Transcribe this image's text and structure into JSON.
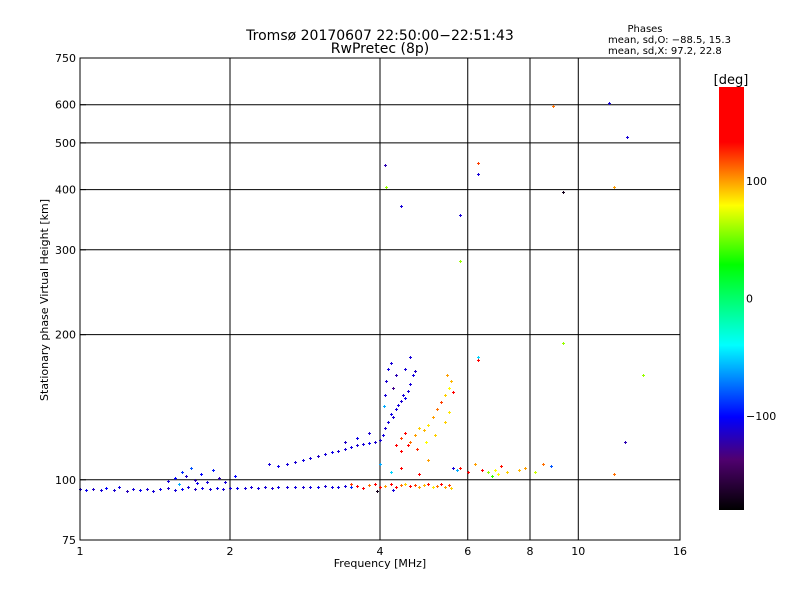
{
  "chart_data": {
    "type": "scatter",
    "title": "Tromsø 20170607 22:50:00−22:51:43",
    "subtitle": "RwPretec (8p)",
    "xlabel": "Frequency [MHz]",
    "ylabel": "Stationary phase Virtual Height [km]",
    "xscale": "log",
    "yscale": "log",
    "xlim": [
      1,
      16
    ],
    "ylim": [
      75,
      750
    ],
    "xticks": [
      1,
      2,
      4,
      6,
      8,
      10,
      16
    ],
    "xtick_labels": [
      "1",
      "2",
      "4",
      "6",
      "8",
      "10",
      "16"
    ],
    "xgrid": [
      2,
      4,
      6,
      8,
      10
    ],
    "yticks": [
      75,
      100,
      200,
      300,
      400,
      500,
      600,
      750
    ],
    "ytick_labels": [
      "75",
      "100",
      "200",
      "300",
      "400",
      "500",
      "600",
      "750"
    ],
    "ygrid": [
      100,
      200,
      300,
      400,
      500,
      600
    ],
    "grid": true,
    "colorbar": {
      "label": "[deg]",
      "range": [
        -180,
        180
      ],
      "ticks": [
        100,
        0,
        -100
      ],
      "tick_labels": [
        "100",
        "0",
        "−100"
      ]
    },
    "stats": {
      "heading": "Phases",
      "o_line": "mean, sd,O: −88.5, 15.3",
      "x_line": "mean, sd,X:  97.2, 22.8"
    },
    "point_fields": [
      "frequency_mhz",
      "height_km",
      "phase_deg"
    ],
    "points": [
      [
        1.0,
        95.5,
        -110
      ],
      [
        1.03,
        95.3,
        -105
      ],
      [
        1.06,
        95.8,
        -115
      ],
      [
        1.1,
        95.2,
        -110
      ],
      [
        1.13,
        96.0,
        -100
      ],
      [
        1.17,
        95.4,
        -112
      ],
      [
        1.2,
        96.5,
        -108
      ],
      [
        1.24,
        95.0,
        -118
      ],
      [
        1.28,
        95.6,
        -110
      ],
      [
        1.32,
        95.2,
        -104
      ],
      [
        1.36,
        95.8,
        -112
      ],
      [
        1.4,
        94.8,
        -110
      ],
      [
        1.45,
        95.5,
        -106
      ],
      [
        1.5,
        96.2,
        -114
      ],
      [
        1.55,
        95.4,
        -110
      ],
      [
        1.6,
        95.9,
        -102
      ],
      [
        1.65,
        96.4,
        -110
      ],
      [
        1.7,
        95.6,
        -115
      ],
      [
        1.76,
        96.0,
        -108
      ],
      [
        1.82,
        95.8,
        -112
      ],
      [
        1.88,
        96.3,
        -106
      ],
      [
        1.94,
        95.7,
        -110
      ],
      [
        2.0,
        96.0,
        -112
      ],
      [
        2.07,
        96.3,
        -104
      ],
      [
        2.14,
        96.0,
        -110
      ],
      [
        2.2,
        96.5,
        -112
      ],
      [
        2.28,
        96.2,
        -108
      ],
      [
        2.35,
        96.6,
        -110
      ],
      [
        2.43,
        96.3,
        -114
      ],
      [
        2.5,
        96.5,
        -106
      ],
      [
        2.6,
        96.4,
        -110
      ],
      [
        2.7,
        96.8,
        -108
      ],
      [
        2.8,
        96.5,
        -112
      ],
      [
        2.9,
        96.7,
        -110
      ],
      [
        3.0,
        96.6,
        -104
      ],
      [
        3.1,
        96.9,
        -112
      ],
      [
        3.2,
        96.6,
        -110
      ],
      [
        3.3,
        96.8,
        -106
      ],
      [
        3.4,
        97.0,
        -110
      ],
      [
        3.5,
        96.7,
        -90
      ],
      [
        1.5,
        99.5,
        -110
      ],
      [
        1.55,
        101,
        -100
      ],
      [
        1.6,
        104,
        -90
      ],
      [
        1.63,
        102,
        -115
      ],
      [
        1.67,
        106,
        -80
      ],
      [
        1.7,
        100,
        -120
      ],
      [
        1.75,
        103,
        -100
      ],
      [
        1.8,
        99,
        -110
      ],
      [
        1.85,
        105,
        -95
      ],
      [
        1.9,
        101,
        -120
      ],
      [
        1.95,
        99,
        -110
      ],
      [
        2.05,
        102,
        -100
      ],
      [
        1.58,
        98,
        -60
      ],
      [
        1.72,
        98.5,
        -105
      ],
      [
        2.4,
        108,
        -110
      ],
      [
        2.5,
        107,
        -105
      ],
      [
        2.6,
        108,
        -110
      ],
      [
        2.7,
        109,
        -112
      ],
      [
        2.8,
        110,
        -108
      ],
      [
        2.9,
        111,
        -110
      ],
      [
        3.0,
        112,
        -115
      ],
      [
        3.1,
        113,
        -110
      ],
      [
        3.2,
        114,
        -106
      ],
      [
        3.3,
        115,
        -112
      ],
      [
        3.4,
        116,
        -110
      ],
      [
        3.5,
        117,
        -108
      ],
      [
        3.6,
        118,
        -112
      ],
      [
        3.7,
        118.5,
        -110
      ],
      [
        3.8,
        119,
        -104
      ],
      [
        3.9,
        120,
        -112
      ],
      [
        4.0,
        121,
        -110
      ],
      [
        4.05,
        124,
        -108
      ],
      [
        4.1,
        128,
        -112
      ],
      [
        4.15,
        132,
        -110
      ],
      [
        4.2,
        137,
        -106
      ],
      [
        4.25,
        135,
        -112
      ],
      [
        4.3,
        140,
        -110
      ],
      [
        4.35,
        143,
        -108
      ],
      [
        4.4,
        146,
        -112
      ],
      [
        4.45,
        150,
        -110
      ],
      [
        4.5,
        148,
        -104
      ],
      [
        4.55,
        153,
        -112
      ],
      [
        4.6,
        158,
        -110
      ],
      [
        4.65,
        165,
        -108
      ],
      [
        4.1,
        150,
        -110
      ],
      [
        4.12,
        160,
        -112
      ],
      [
        4.15,
        170,
        -108
      ],
      [
        4.2,
        175,
        -110
      ],
      [
        4.08,
        142,
        -60
      ],
      [
        4.3,
        165,
        -120
      ],
      [
        4.5,
        170,
        -110
      ],
      [
        4.7,
        168,
        -115
      ],
      [
        4.6,
        180,
        -110
      ],
      [
        4.25,
        155,
        -130
      ],
      [
        3.8,
        125,
        -112
      ],
      [
        3.6,
        122,
        -106
      ],
      [
        3.4,
        120,
        -115
      ],
      [
        4.3,
        118,
        140
      ],
      [
        4.4,
        122,
        120
      ],
      [
        4.5,
        125,
        150
      ],
      [
        4.6,
        120,
        110
      ],
      [
        4.7,
        124,
        100
      ],
      [
        4.8,
        128,
        90
      ],
      [
        4.9,
        127,
        95
      ],
      [
        5.0,
        130,
        85
      ],
      [
        5.1,
        135,
        100
      ],
      [
        5.2,
        140,
        110
      ],
      [
        5.3,
        145,
        120
      ],
      [
        5.4,
        150,
        90
      ],
      [
        5.5,
        155,
        80
      ],
      [
        5.55,
        160,
        95
      ],
      [
        5.45,
        165,
        100
      ],
      [
        5.6,
        152,
        140
      ],
      [
        5.5,
        138,
        85
      ],
      [
        5.4,
        132,
        90
      ],
      [
        4.95,
        120,
        80
      ],
      [
        5.15,
        124,
        90
      ],
      [
        4.75,
        116,
        125
      ],
      [
        4.4,
        115,
        170
      ],
      [
        4.55,
        118,
        150
      ],
      [
        3.5,
        98,
        120
      ],
      [
        3.6,
        97,
        140
      ],
      [
        3.7,
        96,
        150
      ],
      [
        3.8,
        97.5,
        110
      ],
      [
        3.9,
        98,
        170
      ],
      [
        4.0,
        96.5,
        130
      ],
      [
        4.1,
        97,
        100
      ],
      [
        4.2,
        98,
        160
      ],
      [
        4.3,
        96.8,
        140
      ],
      [
        4.4,
        97.5,
        110
      ],
      [
        4.5,
        98,
        90
      ],
      [
        4.6,
        96.9,
        150
      ],
      [
        4.7,
        97.7,
        120
      ],
      [
        4.8,
        96.5,
        100
      ],
      [
        4.9,
        97.6,
        95
      ],
      [
        5.0,
        98,
        130
      ],
      [
        5.1,
        96.7,
        85
      ],
      [
        5.2,
        97.3,
        110
      ],
      [
        5.3,
        98.2,
        140
      ],
      [
        5.4,
        96.6,
        100
      ],
      [
        5.5,
        97.4,
        120
      ],
      [
        5.55,
        96.2,
        90
      ],
      [
        3.95,
        95,
        -170
      ],
      [
        4.25,
        95.4,
        -110
      ],
      [
        4.0,
        108,
        -60
      ],
      [
        4.2,
        104,
        -50
      ],
      [
        4.4,
        106,
        150
      ],
      [
        4.8,
        103,
        160
      ],
      [
        5.0,
        110,
        100
      ],
      [
        5.6,
        106,
        -110
      ],
      [
        5.7,
        105,
        -60
      ],
      [
        5.8,
        106,
        130
      ],
      [
        6.0,
        104,
        150
      ],
      [
        6.2,
        108,
        100
      ],
      [
        6.4,
        105,
        170
      ],
      [
        6.6,
        104,
        60
      ],
      [
        6.8,
        105,
        80
      ],
      [
        7.0,
        107,
        130
      ],
      [
        7.2,
        104,
        90
      ],
      [
        7.6,
        105,
        95
      ],
      [
        7.8,
        106,
        100
      ],
      [
        8.2,
        104,
        70
      ],
      [
        8.5,
        108,
        110
      ],
      [
        8.8,
        107,
        -80
      ],
      [
        6.7,
        102,
        40
      ],
      [
        6.9,
        103,
        80
      ],
      [
        4.1,
        450,
        -120
      ],
      [
        4.12,
        405,
        60
      ],
      [
        4.4,
        370,
        -110
      ],
      [
        5.8,
        355,
        -110
      ],
      [
        6.3,
        455,
        120
      ],
      [
        6.3,
        430,
        -110
      ],
      [
        5.8,
        285,
        60
      ],
      [
        6.3,
        180,
        -50
      ],
      [
        6.3,
        177,
        170
      ],
      [
        9.3,
        395,
        -170
      ],
      [
        8.9,
        595,
        110
      ],
      [
        11.5,
        605,
        -110
      ],
      [
        12.5,
        515,
        -110
      ],
      [
        11.8,
        405,
        100
      ],
      [
        12.4,
        120,
        -120
      ],
      [
        9.3,
        192,
        60
      ],
      [
        13.5,
        165,
        60
      ],
      [
        11.8,
        103,
        110
      ]
    ]
  }
}
